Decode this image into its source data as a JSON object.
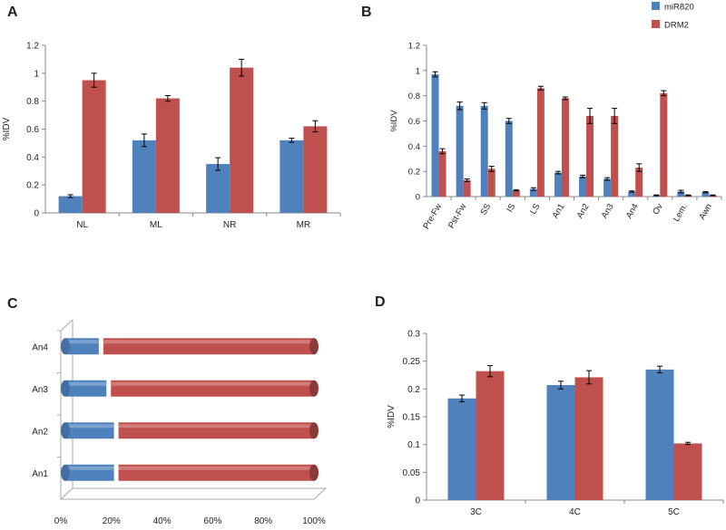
{
  "colors": {
    "blue": "#4f81bd",
    "red": "#c0504d",
    "axis": "#888888",
    "text": "#222222"
  },
  "chart_data": [
    {
      "panel": "A",
      "type": "bar",
      "title": "",
      "xlabel": "",
      "ylabel": "%IDV",
      "ylim": [
        0,
        1.2
      ],
      "yticks": [
        "0",
        "0.2",
        "0.4",
        "0.6",
        "0.8",
        "1",
        "1.2"
      ],
      "grid": false,
      "categories": [
        "NL",
        "ML",
        "NR",
        "MR"
      ],
      "series": [
        {
          "name": "miR820",
          "color": "#4f81bd",
          "values": [
            0.12,
            0.52,
            0.35,
            0.52
          ],
          "errors": [
            0.01,
            0.045,
            0.045,
            0.015
          ]
        },
        {
          "name": "DRM2",
          "color": "#c0504d",
          "values": [
            0.95,
            0.82,
            1.04,
            0.62
          ],
          "errors": [
            0.05,
            0.02,
            0.06,
            0.04
          ]
        }
      ]
    },
    {
      "panel": "B",
      "type": "bar",
      "title": "",
      "xlabel": "",
      "ylabel": "%IDV",
      "ylim": [
        0,
        1.2
      ],
      "yticks": [
        "0",
        "0.2",
        "0.4",
        "0.6",
        "0.8",
        "1",
        "1.2"
      ],
      "grid": false,
      "legend": "top-right",
      "categories": [
        "Pre-Fw",
        "Pst-Fw",
        "SS",
        "IS",
        "LS",
        "An1",
        "An2",
        "An3",
        "An4",
        "Ov",
        "Lem.",
        "Awn"
      ],
      "series": [
        {
          "name": "miR820",
          "color": "#4f81bd",
          "values": [
            0.97,
            0.72,
            0.72,
            0.6,
            0.06,
            0.19,
            0.16,
            0.14,
            0.04,
            0.01,
            0.04,
            0.035
          ],
          "errors": [
            0.02,
            0.03,
            0.025,
            0.02,
            0.01,
            0.01,
            0.01,
            0.01,
            0.005,
            0.003,
            0.01,
            0.005
          ]
        },
        {
          "name": "DRM2",
          "color": "#c0504d",
          "values": [
            0.36,
            0.13,
            0.22,
            0.05,
            0.86,
            0.78,
            0.64,
            0.64,
            0.23,
            0.82,
            0.01,
            0.01
          ],
          "errors": [
            0.02,
            0.01,
            0.02,
            0.005,
            0.015,
            0.01,
            0.06,
            0.06,
            0.03,
            0.02,
            0.003,
            0.003
          ]
        }
      ]
    },
    {
      "panel": "C",
      "type": "bar",
      "orientation": "horizontal-stacked-100",
      "title": "",
      "xlabel": "",
      "ylabel": "",
      "xlim": [
        0,
        100
      ],
      "xticks": [
        "0%",
        "20%",
        "40%",
        "60%",
        "80%",
        "100%"
      ],
      "grid": false,
      "categories": [
        "An1",
        "An2",
        "An3",
        "An4"
      ],
      "series": [
        {
          "name": "miR820",
          "color": "#4f81bd",
          "values": [
            21,
            21,
            18,
            15
          ]
        },
        {
          "name": "DRM2",
          "color": "#c0504d",
          "values": [
            79,
            79,
            82,
            85
          ]
        }
      ]
    },
    {
      "panel": "D",
      "type": "bar",
      "title": "",
      "xlabel": "",
      "ylabel": "%IDV",
      "ylim": [
        0,
        0.3
      ],
      "yticks": [
        "0",
        "0.05",
        "0.1",
        "0.15",
        "0.2",
        "0.25",
        "0.3"
      ],
      "grid": false,
      "categories": [
        "3C",
        "4C",
        "5C"
      ],
      "series": [
        {
          "name": "miR820",
          "color": "#4f81bd",
          "values": [
            0.183,
            0.207,
            0.235
          ],
          "errors": [
            0.006,
            0.007,
            0.006
          ]
        },
        {
          "name": "DRM2",
          "color": "#c0504d",
          "values": [
            0.232,
            0.221,
            0.102
          ],
          "errors": [
            0.01,
            0.012,
            0.002
          ]
        }
      ]
    }
  ]
}
